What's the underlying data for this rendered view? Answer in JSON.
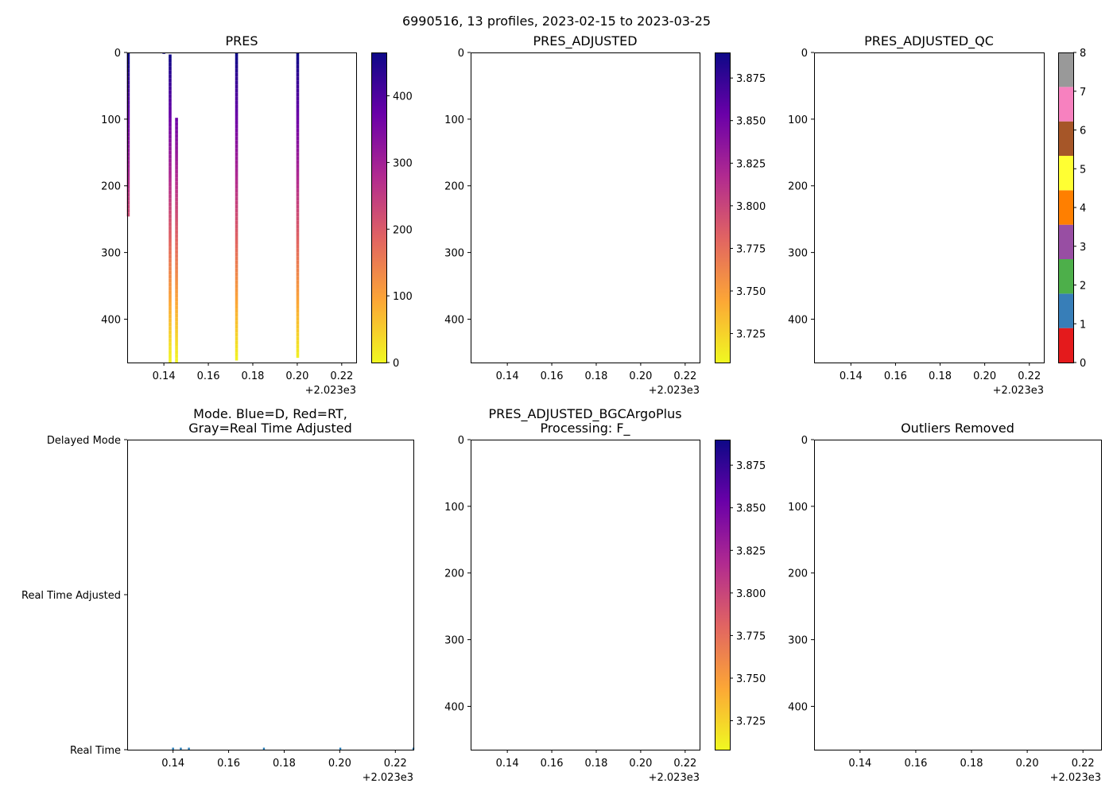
{
  "figure_title": "6990516, 13 profiles, 2023-02-15 to 2023-03-25",
  "colors": {
    "plasma_stops": [
      "#0d0887",
      "#6a00a8",
      "#b12a90",
      "#e16462",
      "#fca636",
      "#f0f921"
    ],
    "qc_classes": [
      "#e41a1c",
      "#377eb8",
      "#4daf4a",
      "#984ea3",
      "#ff7f00",
      "#ffff33",
      "#a65628",
      "#f781bf",
      "#999999"
    ],
    "mode_points": "#1f77b4"
  },
  "chart_data": [
    {
      "id": "pres",
      "type": "heatmap",
      "title": "PRES",
      "x_offset_label": "+2.023e3",
      "xlim": [
        0.1235,
        0.2265
      ],
      "ylim": [
        465,
        0
      ],
      "x_ticks": [
        0.14,
        0.16,
        0.18,
        0.2,
        0.22
      ],
      "x_tick_labels": [
        "0.14",
        "0.16",
        "0.18",
        "0.20",
        "0.22"
      ],
      "y_ticks": [
        0,
        100,
        200,
        300,
        400
      ],
      "y_tick_labels": [
        "0",
        "100",
        "200",
        "300",
        "400"
      ],
      "profiles": [
        {
          "x": 0.124,
          "p_min": 0,
          "p_max": 246
        },
        {
          "x": 0.14,
          "p_min": 0,
          "p_max": 2
        },
        {
          "x": 0.1428,
          "p_min": 3,
          "p_max": 465
        },
        {
          "x": 0.1457,
          "p_min": 98,
          "p_max": 465
        },
        {
          "x": 0.1727,
          "p_min": 0,
          "p_max": 462
        },
        {
          "x": 0.2002,
          "p_min": 0,
          "p_max": 458
        }
      ],
      "colorbar": {
        "vmin": 0,
        "vmax": 465,
        "ticks": [
          0,
          100,
          200,
          300,
          400
        ],
        "tick_labels": [
          "0",
          "100",
          "200",
          "300",
          "400"
        ]
      }
    },
    {
      "id": "pres_adj",
      "type": "heatmap",
      "title": "PRES_ADJUSTED",
      "x_offset_label": "+2.023e3",
      "xlim": [
        0.1235,
        0.2265
      ],
      "ylim": [
        465,
        0
      ],
      "x_ticks": [
        0.14,
        0.16,
        0.18,
        0.2,
        0.22
      ],
      "x_tick_labels": [
        "0.14",
        "0.16",
        "0.18",
        "0.20",
        "0.22"
      ],
      "y_ticks": [
        0,
        100,
        200,
        300,
        400
      ],
      "y_tick_labels": [
        "0",
        "100",
        "200",
        "300",
        "400"
      ],
      "profiles": [],
      "colorbar": {
        "vmin": 3.708,
        "vmax": 3.89,
        "ticks": [
          3.725,
          3.75,
          3.775,
          3.8,
          3.825,
          3.85,
          3.875
        ],
        "tick_labels": [
          "3.725",
          "3.750",
          "3.775",
          "3.800",
          "3.825",
          "3.850",
          "3.875"
        ]
      }
    },
    {
      "id": "pres_adj_qc",
      "type": "heatmap",
      "title": "PRES_ADJUSTED_QC",
      "x_offset_label": "+2.023e3",
      "xlim": [
        0.1235,
        0.2265
      ],
      "ylim": [
        465,
        0
      ],
      "x_ticks": [
        0.14,
        0.16,
        0.18,
        0.2,
        0.22
      ],
      "x_tick_labels": [
        "0.14",
        "0.16",
        "0.18",
        "0.20",
        "0.22"
      ],
      "y_ticks": [
        0,
        100,
        200,
        300,
        400
      ],
      "y_tick_labels": [
        "0",
        "100",
        "200",
        "300",
        "400"
      ],
      "profiles": [],
      "colorbar": {
        "vmin": 0,
        "vmax": 8,
        "discrete": true,
        "ticks": [
          0,
          1,
          2,
          3,
          4,
          5,
          6,
          7,
          8
        ],
        "tick_labels": [
          "0",
          "1",
          "2",
          "3",
          "4",
          "5",
          "6",
          "7",
          "8"
        ]
      }
    },
    {
      "id": "mode",
      "type": "scatter",
      "title_lines": [
        "Mode. Blue=D, Red=RT,",
        "Gray=Real Time Adjusted"
      ],
      "x_offset_label": "+2.023e3",
      "xlim": [
        0.1235,
        0.2265
      ],
      "ylim": [
        0,
        2
      ],
      "x_ticks": [
        0.14,
        0.16,
        0.18,
        0.2,
        0.22
      ],
      "x_tick_labels": [
        "0.14",
        "0.16",
        "0.18",
        "0.20",
        "0.22"
      ],
      "y_ticks": [
        0,
        1,
        2
      ],
      "y_tick_labels": [
        "Real Time",
        "Real Time Adjusted",
        "Delayed Mode"
      ],
      "points": [
        {
          "x": 0.14,
          "y": 0
        },
        {
          "x": 0.1428,
          "y": 0
        },
        {
          "x": 0.1457,
          "y": 0
        },
        {
          "x": 0.1727,
          "y": 0
        },
        {
          "x": 0.2002,
          "y": 0
        },
        {
          "x": 0.2265,
          "y": 0
        }
      ]
    },
    {
      "id": "pres_bgc",
      "type": "heatmap",
      "title_lines": [
        "PRES_ADJUSTED_BGCArgoPlus",
        "Processing: F_"
      ],
      "x_offset_label": "+2.023e3",
      "xlim": [
        0.1235,
        0.2265
      ],
      "ylim": [
        465,
        0
      ],
      "x_ticks": [
        0.14,
        0.16,
        0.18,
        0.2,
        0.22
      ],
      "x_tick_labels": [
        "0.14",
        "0.16",
        "0.18",
        "0.20",
        "0.22"
      ],
      "y_ticks": [
        0,
        100,
        200,
        300,
        400
      ],
      "y_tick_labels": [
        "0",
        "100",
        "200",
        "300",
        "400"
      ],
      "profiles": [],
      "colorbar": {
        "vmin": 3.708,
        "vmax": 3.89,
        "ticks": [
          3.725,
          3.75,
          3.775,
          3.8,
          3.825,
          3.85,
          3.875
        ],
        "tick_labels": [
          "3.725",
          "3.750",
          "3.775",
          "3.800",
          "3.825",
          "3.850",
          "3.875"
        ]
      }
    },
    {
      "id": "outliers",
      "type": "heatmap",
      "title": "Outliers Removed",
      "x_offset_label": "+2.023e3",
      "xlim": [
        0.1235,
        0.2265
      ],
      "ylim": [
        465,
        0
      ],
      "x_ticks": [
        0.14,
        0.16,
        0.18,
        0.2,
        0.22
      ],
      "x_tick_labels": [
        "0.14",
        "0.16",
        "0.18",
        "0.20",
        "0.22"
      ],
      "y_ticks": [
        0,
        100,
        200,
        300,
        400
      ],
      "y_tick_labels": [
        "0",
        "100",
        "200",
        "300",
        "400"
      ],
      "profiles": []
    }
  ]
}
